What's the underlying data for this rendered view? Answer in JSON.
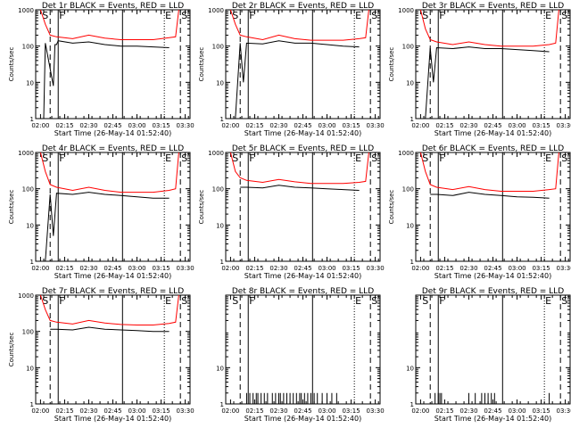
{
  "chart_data": [
    {
      "type": "line",
      "panel": "1",
      "title": "Det 1r BLACK = Events, RED = LLD",
      "xlabel": "Start Time (26-May-14 01:52:40)",
      "ylabel": "Counts/sec",
      "ylim": [
        1,
        1000
      ],
      "log_y": true,
      "x_ticks": [
        "02:00",
        "02:15",
        "02:30",
        "02:45",
        "03:00",
        "03:15",
        "03:30"
      ],
      "y_ticks": [
        "1",
        "10",
        "100",
        "1000"
      ],
      "markers": [
        {
          "label": "S",
          "x": 0.5
        },
        {
          "label": "F",
          "x": 11
        },
        {
          "label": "E",
          "x": 77
        },
        {
          "label": "S",
          "x": 87
        }
      ],
      "dashed_lines": [
        6,
        87
      ],
      "solid_lines": [
        11,
        51
      ],
      "dotted_lines": [
        77
      ],
      "series": [
        {
          "color": "#ff0000",
          "x": [
            0,
            3,
            6,
            10,
            20,
            30,
            40,
            50,
            60,
            70,
            80,
            84,
            86
          ],
          "values": [
            1000,
            400,
            200,
            180,
            160,
            200,
            165,
            150,
            150,
            150,
            170,
            180,
            1000
          ]
        },
        {
          "color": "#000000",
          "x": [
            2,
            3,
            8,
            9,
            10,
            11,
            20,
            30,
            40,
            50,
            60,
            70,
            80
          ],
          "values": [
            1,
            120,
            8,
            110,
            110,
            140,
            120,
            130,
            110,
            100,
            100,
            95,
            90
          ]
        }
      ]
    },
    {
      "type": "line",
      "panel": "2",
      "title": "Det 2r BLACK = Events, RED = LLD",
      "xlabel": "Start Time (26-May-14 01:52:40)",
      "ylabel": "Counts/sec",
      "ylim": [
        1,
        1000
      ],
      "log_y": true,
      "x_ticks": [
        "02:00",
        "02:15",
        "02:30",
        "02:45",
        "03:00",
        "03:15",
        "03:30"
      ],
      "y_ticks": [
        "1",
        "10",
        "100",
        "1000"
      ],
      "markers": [
        {
          "label": "S",
          "x": 0.5
        },
        {
          "label": "F",
          "x": 11
        },
        {
          "label": "E",
          "x": 77
        },
        {
          "label": "S",
          "x": 87
        }
      ],
      "dashed_lines": [
        6,
        87
      ],
      "solid_lines": [
        11,
        51
      ],
      "dotted_lines": [
        77
      ],
      "series": [
        {
          "color": "#ff0000",
          "x": [
            0,
            3,
            6,
            10,
            20,
            30,
            40,
            50,
            60,
            70,
            80,
            84,
            86
          ],
          "values": [
            1000,
            400,
            200,
            180,
            150,
            200,
            160,
            145,
            145,
            145,
            160,
            170,
            1000
          ]
        },
        {
          "color": "#000000",
          "x": [
            3,
            6,
            8,
            10,
            20,
            30,
            40,
            50,
            60,
            70,
            80
          ],
          "values": [
            1,
            120,
            10,
            120,
            115,
            140,
            120,
            120,
            110,
            100,
            95
          ]
        }
      ]
    },
    {
      "type": "line",
      "panel": "3",
      "title": "Det 3r BLACK = Events, RED = LLD",
      "xlabel": "Start Time (26-May-14 01:52:40)",
      "ylabel": "Counts/sec",
      "ylim": [
        1,
        1000
      ],
      "log_y": true,
      "x_ticks": [
        "02:00",
        "02:15",
        "02:30",
        "02:45",
        "03:00",
        "03:15",
        "03:30"
      ],
      "y_ticks": [
        "1",
        "10",
        "100",
        "1000"
      ],
      "markers": [
        {
          "label": "S",
          "x": 0.5
        },
        {
          "label": "F",
          "x": 11
        },
        {
          "label": "E",
          "x": 77
        },
        {
          "label": "S",
          "x": 87
        }
      ],
      "dashed_lines": [
        6,
        87
      ],
      "solid_lines": [
        11,
        51
      ],
      "dotted_lines": [
        77
      ],
      "series": [
        {
          "color": "#ff0000",
          "x": [
            0,
            3,
            6,
            10,
            20,
            30,
            40,
            50,
            60,
            70,
            80,
            84,
            86
          ],
          "values": [
            1000,
            300,
            150,
            130,
            110,
            130,
            110,
            100,
            100,
            100,
            110,
            120,
            1000
          ]
        },
        {
          "color": "#000000",
          "x": [
            3,
            6,
            8,
            10,
            20,
            30,
            40,
            50,
            60,
            70,
            80
          ],
          "values": [
            1,
            90,
            10,
            90,
            85,
            95,
            85,
            85,
            80,
            75,
            70
          ]
        }
      ]
    },
    {
      "type": "line",
      "panel": "4",
      "title": "Det 4r BLACK = Events, RED = LLD",
      "xlabel": "Start Time (26-May-14 01:52:40)",
      "ylabel": "Counts/sec",
      "ylim": [
        1,
        1000
      ],
      "log_y": true,
      "x_ticks": [
        "02:00",
        "02:15",
        "02:30",
        "02:45",
        "03:00",
        "03:15",
        "03:30"
      ],
      "y_ticks": [
        "1",
        "10",
        "100",
        "1000"
      ],
      "markers": [
        {
          "label": "S",
          "x": 0.5
        },
        {
          "label": "F",
          "x": 11
        },
        {
          "label": "E",
          "x": 77
        },
        {
          "label": "S",
          "x": 87
        }
      ],
      "dashed_lines": [
        6,
        87
      ],
      "solid_lines": [
        11,
        51
      ],
      "dotted_lines": [
        77
      ],
      "series": [
        {
          "color": "#ff0000",
          "x": [
            0,
            3,
            6,
            10,
            20,
            30,
            40,
            50,
            60,
            70,
            80,
            84,
            86
          ],
          "values": [
            1000,
            300,
            130,
            110,
            90,
            110,
            90,
            80,
            80,
            80,
            90,
            100,
            1000
          ]
        },
        {
          "color": "#000000",
          "x": [
            3,
            6,
            8,
            10,
            20,
            30,
            40,
            50,
            60,
            70,
            80
          ],
          "values": [
            1,
            70,
            5,
            75,
            70,
            80,
            70,
            65,
            60,
            55,
            55
          ]
        }
      ]
    },
    {
      "type": "line",
      "panel": "5",
      "title": "Det 5r BLACK = Events, RED = LLD",
      "xlabel": "Start Time (26-May-14 01:52:40)",
      "ylabel": "Counts/sec",
      "ylim": [
        1,
        1000
      ],
      "log_y": true,
      "x_ticks": [
        "02:00",
        "02:15",
        "02:30",
        "02:45",
        "03:00",
        "03:15",
        "03:30"
      ],
      "y_ticks": [
        "1",
        "10",
        "100",
        "1000"
      ],
      "markers": [
        {
          "label": "S",
          "x": 0.5
        },
        {
          "label": "F",
          "x": 11
        },
        {
          "label": "E",
          "x": 77
        },
        {
          "label": "S",
          "x": 87
        }
      ],
      "dashed_lines": [
        6,
        87
      ],
      "solid_lines": [
        11,
        51
      ],
      "dotted_lines": [
        77
      ],
      "series": [
        {
          "color": "#ff0000",
          "x": [
            0,
            3,
            6,
            10,
            20,
            30,
            40,
            50,
            60,
            70,
            80,
            84,
            86
          ],
          "values": [
            1000,
            300,
            200,
            170,
            150,
            180,
            155,
            140,
            140,
            140,
            150,
            160,
            1000
          ]
        },
        {
          "color": "#000000",
          "x": [
            6,
            10,
            20,
            30,
            40,
            50,
            60,
            70,
            80
          ],
          "values": [
            110,
            110,
            105,
            125,
            110,
            105,
            100,
            95,
            90
          ]
        }
      ]
    },
    {
      "type": "line",
      "panel": "6",
      "title": "Det 6r BLACK = Events, RED = LLD",
      "xlabel": "Start Time (26-May-14 01:52:40)",
      "ylabel": "Counts/sec",
      "ylim": [
        1,
        1000
      ],
      "log_y": true,
      "x_ticks": [
        "02:00",
        "02:15",
        "02:30",
        "02:45",
        "03:00",
        "03:15",
        "03:30"
      ],
      "y_ticks": [
        "1",
        "10",
        "100",
        "1000"
      ],
      "markers": [
        {
          "label": "S",
          "x": 0.5
        },
        {
          "label": "F",
          "x": 11
        },
        {
          "label": "E",
          "x": 77
        },
        {
          "label": "S",
          "x": 87
        }
      ],
      "dashed_lines": [
        6,
        87
      ],
      "solid_lines": [
        11,
        51
      ],
      "dotted_lines": [
        77
      ],
      "series": [
        {
          "color": "#ff0000",
          "x": [
            0,
            3,
            6,
            10,
            20,
            30,
            40,
            50,
            60,
            70,
            80,
            84,
            86
          ],
          "values": [
            1000,
            300,
            130,
            110,
            95,
            115,
            95,
            85,
            85,
            85,
            95,
            100,
            1000
          ]
        },
        {
          "color": "#000000",
          "x": [
            6,
            10,
            20,
            30,
            40,
            50,
            60,
            70,
            80
          ],
          "values": [
            70,
            70,
            65,
            80,
            70,
            65,
            60,
            58,
            55
          ]
        }
      ]
    },
    {
      "type": "line",
      "panel": "7",
      "title": "Det 7r BLACK = Events, RED = LLD",
      "xlabel": "Start Time (26-May-14 01:52:40)",
      "ylabel": "Counts/sec",
      "ylim": [
        1,
        1000
      ],
      "log_y": true,
      "x_ticks": [
        "02:00",
        "02:15",
        "02:30",
        "02:45",
        "03:00",
        "03:15",
        "03:30"
      ],
      "y_ticks": [
        "1",
        "10",
        "100",
        "1000"
      ],
      "markers": [
        {
          "label": "S",
          "x": 0.5
        },
        {
          "label": "F",
          "x": 11
        },
        {
          "label": "E",
          "x": 77
        },
        {
          "label": "S",
          "x": 87
        }
      ],
      "dashed_lines": [
        6,
        87
      ],
      "solid_lines": [
        11,
        51
      ],
      "dotted_lines": [
        77
      ],
      "series": [
        {
          "color": "#ff0000",
          "x": [
            0,
            3,
            6,
            10,
            20,
            30,
            40,
            50,
            60,
            70,
            80,
            84,
            86
          ],
          "values": [
            1000,
            400,
            200,
            180,
            160,
            200,
            170,
            155,
            150,
            150,
            165,
            180,
            1000
          ]
        },
        {
          "color": "#000000",
          "x": [
            6,
            10,
            20,
            30,
            40,
            50,
            60,
            70,
            80
          ],
          "values": [
            115,
            115,
            110,
            130,
            115,
            110,
            105,
            100,
            100
          ]
        }
      ]
    },
    {
      "type": "line",
      "panel": "8",
      "title": "Det 8r BLACK = Events, RED = LLD",
      "xlabel": "Start Time (26-May-14 01:52:40)",
      "ylabel": "",
      "ylim": [
        1,
        1000
      ],
      "log_y": true,
      "x_ticks": [
        "02:00",
        "02:15",
        "02:30",
        "02:45",
        "03:00",
        "03:15",
        "03:30"
      ],
      "y_ticks": [
        "1",
        "10"
      ],
      "markers": [
        {
          "label": "S",
          "x": 0.5
        },
        {
          "label": "F",
          "x": 11
        },
        {
          "label": "E",
          "x": 77
        },
        {
          "label": "S",
          "x": 87
        }
      ],
      "dashed_lines": [
        6,
        87
      ],
      "solid_lines": [
        11,
        51
      ],
      "dotted_lines": [
        77
      ],
      "spikes": [
        {
          "value": 2,
          "x": [
            10,
            12,
            14,
            16,
            17,
            19,
            21,
            23,
            26,
            28,
            30,
            31,
            33,
            35,
            37,
            39,
            41,
            43,
            44,
            46,
            48,
            50,
            52,
            54,
            57,
            60,
            63,
            66
          ]
        }
      ],
      "series": []
    },
    {
      "type": "line",
      "panel": "9",
      "title": "Det 9r BLACK = Events, RED = LLD",
      "xlabel": "Start Time (26-May-14 01:52:40)",
      "ylabel": "",
      "ylim": [
        1,
        1000
      ],
      "log_y": true,
      "x_ticks": [
        "02:00",
        "02:15",
        "02:30",
        "02:45",
        "03:00",
        "03:15",
        "03:30"
      ],
      "y_ticks": [
        "1",
        "10"
      ],
      "markers": [
        {
          "label": "S",
          "x": 0.5
        },
        {
          "label": "F",
          "x": 11
        },
        {
          "label": "E",
          "x": 77
        },
        {
          "label": "S",
          "x": 87
        }
      ],
      "dashed_lines": [
        6,
        87
      ],
      "solid_lines": [
        11,
        51
      ],
      "dotted_lines": [
        77
      ],
      "spikes": [
        {
          "value": 2,
          "x": [
            9,
            11,
            12,
            13,
            30,
            34,
            38,
            40,
            42,
            44,
            46,
            80
          ]
        }
      ],
      "series": []
    }
  ]
}
